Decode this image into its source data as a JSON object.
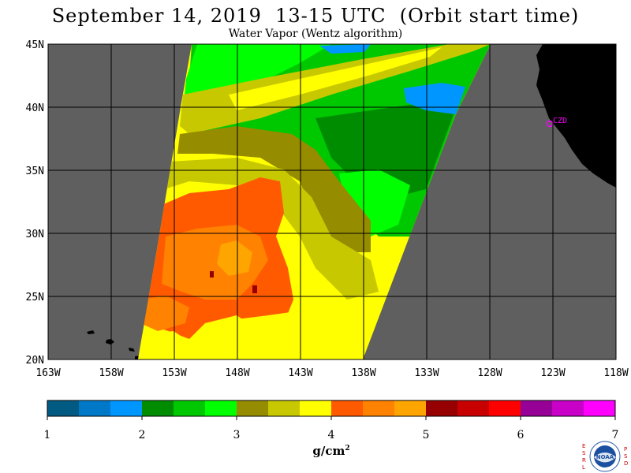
{
  "header": {
    "title": "September 14, 2019  13-15 UTC  (Orbit start time)",
    "subtitle": "Water Vapor (Wentz algorithm)"
  },
  "map": {
    "lon_labels": [
      "163W",
      "158W",
      "153W",
      "148W",
      "143W",
      "138W",
      "133W",
      "128W",
      "123W",
      "118W"
    ],
    "lat_labels": [
      "45N",
      "40N",
      "35N",
      "30N",
      "25N",
      "20N"
    ],
    "lon_range": [
      -163,
      -118
    ],
    "lat_range": [
      20,
      45
    ],
    "station_label": "CZD",
    "colors": {
      "no_data": "#5f5f5f",
      "land": "#000000",
      "station": "#ff00ff",
      "grid": "#000000"
    }
  },
  "colorbar": {
    "tick_labels": [
      "1",
      "2",
      "3",
      "4",
      "5",
      "6",
      "7"
    ],
    "unit": "g/cm",
    "unit_sup": "2",
    "colors": [
      "#005a82",
      "#0078c8",
      "#0096ff",
      "#008c00",
      "#00c800",
      "#00ff00",
      "#968c00",
      "#c8c800",
      "#ffff00",
      "#ff5a00",
      "#ff8200",
      "#ffa500",
      "#960000",
      "#c80000",
      "#ff0000",
      "#960096",
      "#c800c8",
      "#ff00ff"
    ]
  },
  "logo": {
    "left_letters": [
      "E",
      "S",
      "R",
      "L"
    ],
    "right_letters": [
      "P",
      "S",
      "D"
    ],
    "center_text": "NOAA"
  }
}
